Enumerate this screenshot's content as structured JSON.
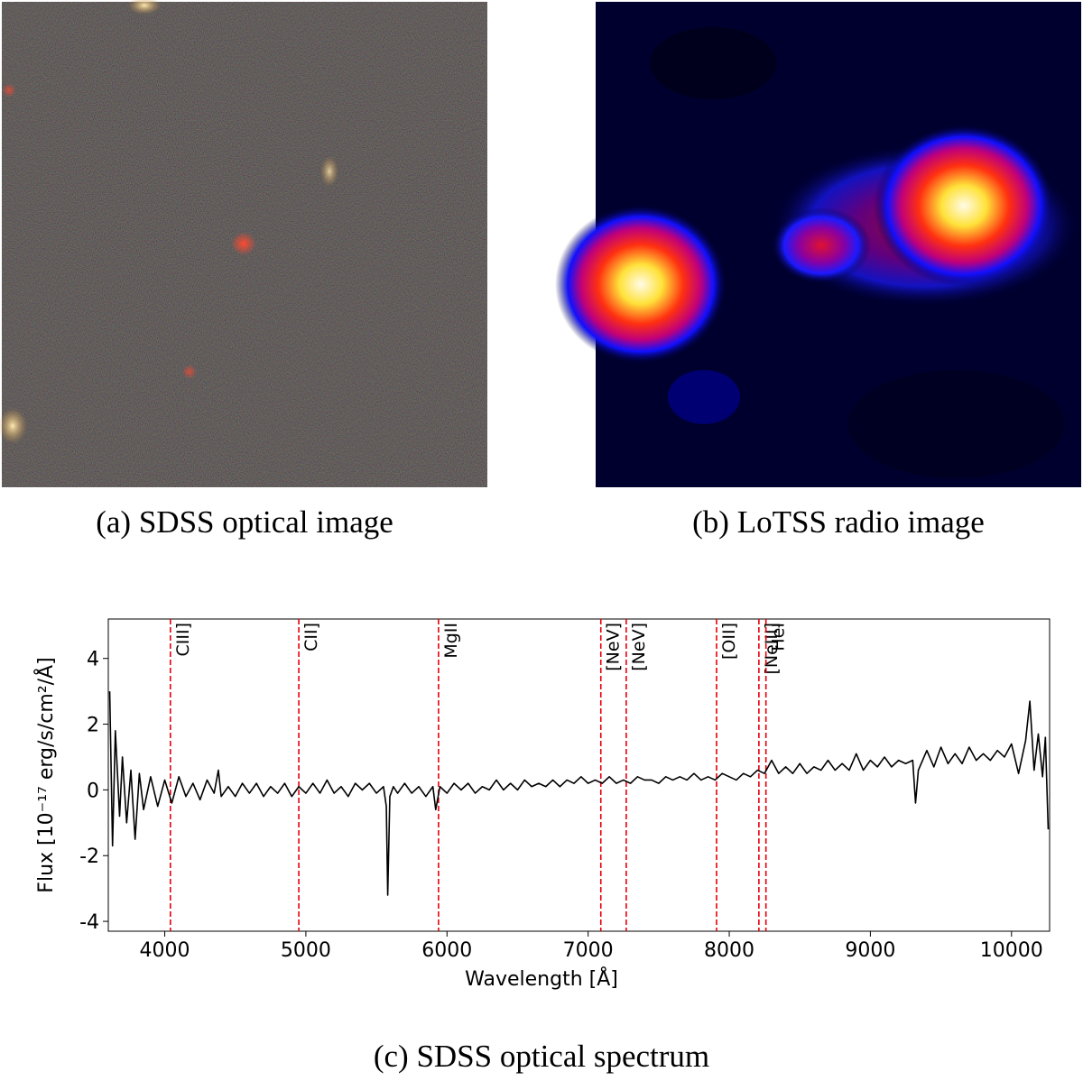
{
  "figure": {
    "captions": [
      "(a) SDSS optical image",
      "(b) LoTSS radio image"
    ]
  },
  "chart_data": {
    "type": "line",
    "caption": "(c) SDSS optical spectrum",
    "xlabel": "Wavelength [Å]",
    "ylabel": "Flux [10⁻¹⁷ erg/s/cm²/Å]",
    "xlim": [
      3600,
      10270
    ],
    "ylim": [
      -4.3,
      5.2
    ],
    "xticks": [
      4000,
      5000,
      6000,
      7000,
      8000,
      9000,
      10000
    ],
    "yticks": [
      -4,
      -2,
      0,
      2,
      4
    ],
    "lines_color": "#e8000b",
    "lines": [
      {
        "label": "CIII]",
        "x": 4040
      },
      {
        "label": "CII]",
        "x": 4950
      },
      {
        "label": "MgII",
        "x": 5940
      },
      {
        "label": "[NeV]",
        "x": 7090
      },
      {
        "label": "[NeV]",
        "x": 7270
      },
      {
        "label": "[OII]",
        "x": 7910
      },
      {
        "label": "[NeIII]",
        "x": 8210
      },
      {
        "label": "HeI",
        "x": 8260
      }
    ],
    "x": [
      3610,
      3630,
      3650,
      3680,
      3700,
      3730,
      3760,
      3790,
      3820,
      3850,
      3900,
      3950,
      4000,
      4050,
      4100,
      4150,
      4200,
      4250,
      4300,
      4350,
      4380,
      4400,
      4450,
      4500,
      4550,
      4600,
      4650,
      4700,
      4750,
      4800,
      4850,
      4900,
      4950,
      5000,
      5050,
      5100,
      5150,
      5200,
      5250,
      5300,
      5350,
      5400,
      5450,
      5500,
      5550,
      5570,
      5580,
      5595,
      5620,
      5650,
      5700,
      5750,
      5800,
      5850,
      5900,
      5920,
      5950,
      6000,
      6050,
      6100,
      6150,
      6200,
      6250,
      6300,
      6350,
      6400,
      6450,
      6500,
      6550,
      6600,
      6650,
      6700,
      6750,
      6800,
      6850,
      6900,
      6950,
      7000,
      7050,
      7100,
      7150,
      7200,
      7250,
      7300,
      7350,
      7400,
      7450,
      7500,
      7550,
      7600,
      7650,
      7700,
      7750,
      7800,
      7850,
      7900,
      7950,
      8000,
      8050,
      8100,
      8150,
      8200,
      8250,
      8300,
      8350,
      8400,
      8450,
      8500,
      8550,
      8600,
      8650,
      8700,
      8750,
      8800,
      8850,
      8900,
      8950,
      9000,
      9050,
      9100,
      9150,
      9200,
      9250,
      9300,
      9320,
      9340,
      9400,
      9450,
      9500,
      9550,
      9600,
      9650,
      9700,
      9750,
      9800,
      9850,
      9900,
      9950,
      10000,
      10050,
      10100,
      10130,
      10160,
      10190,
      10220,
      10240,
      10260
    ],
    "series": [
      {
        "color": "#000000",
        "values": [
          3.0,
          -1.7,
          1.8,
          -0.8,
          1.0,
          -1.0,
          0.6,
          -1.5,
          0.5,
          -0.6,
          0.4,
          -0.5,
          0.3,
          -0.4,
          0.4,
          -0.2,
          0.2,
          -0.3,
          0.3,
          -0.1,
          0.6,
          -0.2,
          0.1,
          -0.2,
          0.2,
          -0.1,
          0.2,
          -0.2,
          0.1,
          -0.1,
          0.2,
          -0.2,
          0.1,
          -0.1,
          0.2,
          -0.1,
          0.3,
          -0.1,
          0.1,
          -0.2,
          0.2,
          0.0,
          0.2,
          -0.1,
          0.1,
          -0.5,
          -3.2,
          -0.2,
          0.1,
          -0.1,
          0.2,
          -0.1,
          0.1,
          -0.2,
          0.1,
          -0.6,
          0.1,
          -0.1,
          0.2,
          0.0,
          0.2,
          -0.1,
          0.1,
          0.0,
          0.3,
          0.0,
          0.2,
          0.0,
          0.3,
          0.1,
          0.2,
          0.1,
          0.3,
          0.1,
          0.3,
          0.2,
          0.4,
          0.2,
          0.3,
          0.2,
          0.4,
          0.2,
          0.3,
          0.2,
          0.4,
          0.3,
          0.3,
          0.2,
          0.4,
          0.3,
          0.4,
          0.3,
          0.5,
          0.3,
          0.4,
          0.3,
          0.5,
          0.4,
          0.3,
          0.5,
          0.4,
          0.6,
          0.5,
          0.9,
          0.5,
          0.7,
          0.5,
          0.8,
          0.5,
          0.7,
          0.6,
          0.9,
          0.6,
          0.8,
          0.6,
          1.1,
          0.6,
          0.9,
          0.7,
          1.0,
          0.7,
          0.9,
          0.8,
          0.9,
          -0.4,
          0.6,
          1.2,
          0.7,
          1.3,
          0.8,
          1.1,
          0.8,
          1.3,
          0.9,
          1.1,
          0.9,
          1.2,
          1.0,
          1.4,
          0.5,
          1.5,
          2.7,
          0.6,
          1.7,
          0.4,
          1.6,
          -1.2
        ]
      }
    ]
  }
}
